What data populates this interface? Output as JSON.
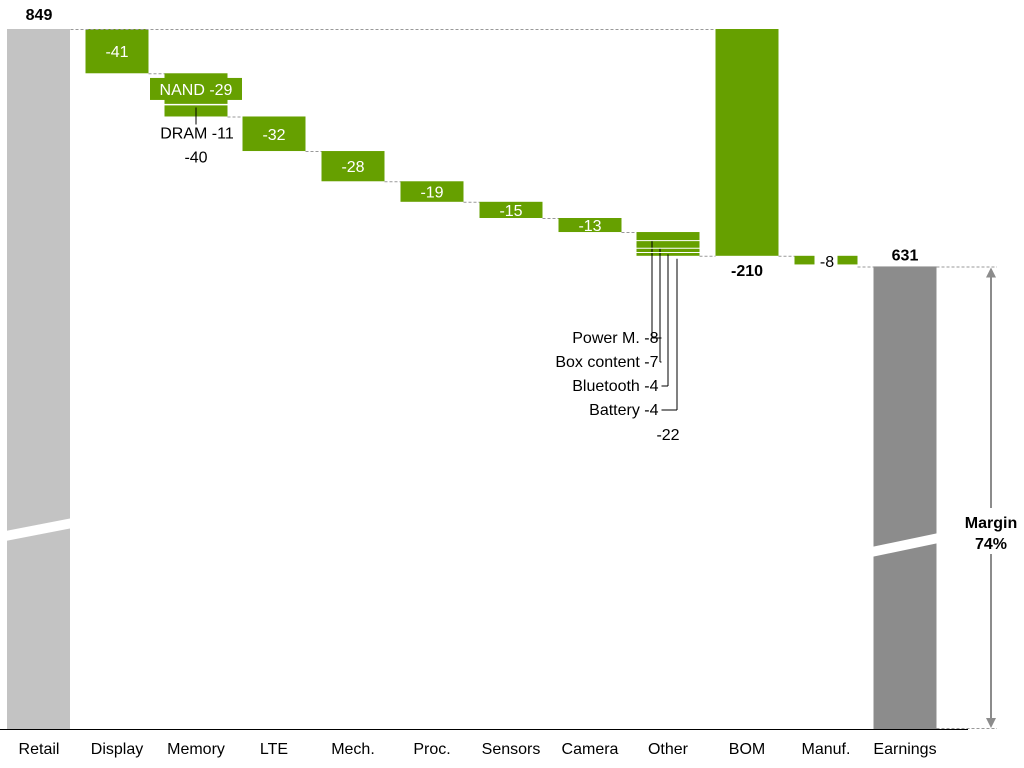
{
  "chart_data": {
    "type": "waterfall",
    "categories": [
      "Retail",
      "Display",
      "Memory",
      "LTE",
      "Mech.",
      "Proc.",
      "Sensors",
      "Camera",
      "Other",
      "BOM",
      "Manuf.",
      "Earnings"
    ],
    "start": {
      "label": "Retail",
      "value": 849,
      "value_label": "849"
    },
    "steps": [
      {
        "category": "Display",
        "value": -41,
        "label": "-41"
      },
      {
        "category": "Memory",
        "value": -40,
        "label": "-40",
        "components": [
          {
            "name": "NAND",
            "value": -29,
            "label": "NAND -29"
          },
          {
            "name": "DRAM",
            "value": -11,
            "label": "DRAM -11"
          }
        ]
      },
      {
        "category": "LTE",
        "value": -32,
        "label": "-32"
      },
      {
        "category": "Mech.",
        "value": -28,
        "label": "-28"
      },
      {
        "category": "Proc.",
        "value": -19,
        "label": "-19"
      },
      {
        "category": "Sensors",
        "value": -15,
        "label": "-15"
      },
      {
        "category": "Camera",
        "value": -13,
        "label": "-13"
      },
      {
        "category": "Other",
        "value": -22,
        "label": "-22",
        "components": [
          {
            "name": "Power M.",
            "value": -8,
            "label": "Power M. -8"
          },
          {
            "name": "Box content",
            "value": -7,
            "label": "Box content -7"
          },
          {
            "name": "Bluetooth",
            "value": -4,
            "label": "Bluetooth -4"
          },
          {
            "name": "Battery",
            "value": -4,
            "label": "Battery -4"
          }
        ]
      }
    ],
    "subtotal": {
      "category": "BOM",
      "value": -210,
      "label": "-210"
    },
    "after_subtotal": [
      {
        "category": "Manuf.",
        "value": -8,
        "label": "-8"
      }
    ],
    "end": {
      "label": "Earnings",
      "value": 631,
      "value_label": "631"
    },
    "margin_annotation": {
      "line1": "Margin",
      "line2": "74%"
    },
    "axis_break": true,
    "colors": {
      "start_bar": "#c3c3c3",
      "end_bar": "#8c8c8c",
      "step_bar": "#66a000",
      "connector": "#999999",
      "arrow": "#8c8c8c"
    }
  }
}
